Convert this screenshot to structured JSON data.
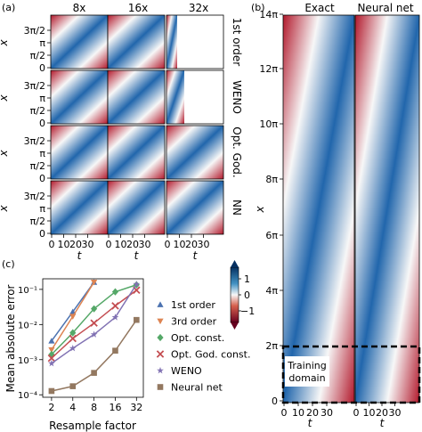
{
  "colors": {
    "red": "#b2182b",
    "white": "#f7f7f7",
    "blue": "#2166ac",
    "series_1st": "#4c72b0",
    "series_3rd": "#dd8452",
    "series_opt": "#55a868",
    "series_optgod": "#c44e52",
    "series_weno": "#8172b3",
    "series_nn": "#937860"
  },
  "panel_a": {
    "label": "(a)",
    "col_titles": [
      "8x",
      "16x",
      "32x"
    ],
    "row_titles": [
      "1st order",
      "WENO",
      "Opt. God.",
      "NN"
    ],
    "ylabel": "x",
    "y_ticks": [
      "3π/2",
      "π",
      "π/2",
      "0"
    ],
    "xlabel": "t",
    "x_ticks": [
      "0",
      "10",
      "20",
      "30"
    ]
  },
  "panel_b": {
    "label": "(b)",
    "col_titles": [
      "Exact",
      "Neural net"
    ],
    "ylabel": "x",
    "y_ticks": [
      "14π",
      "12π",
      "10π",
      "8π",
      "6π",
      "4π",
      "2π",
      "0"
    ],
    "xlabel": "t",
    "x_ticks": [
      "0",
      "10",
      "20",
      "30"
    ],
    "box_label_line1": "Training",
    "box_label_line2": "domain"
  },
  "colorbar": {
    "ticks": [
      "1",
      "0",
      "−1"
    ]
  },
  "chart_data": [
    {
      "type": "line",
      "panel": "(c)",
      "xlabel": "Resample factor",
      "ylabel": "Mean absolute error",
      "x_scale": "log2",
      "y_scale": "log",
      "x": [
        2,
        4,
        8,
        16,
        32
      ],
      "x_tick_labels": [
        "2",
        "4",
        "8",
        "16",
        "32"
      ],
      "y_tick_labels": [
        "10⁻⁴",
        "10⁻³",
        "10⁻²",
        "10⁻¹"
      ],
      "ylim": [
        0.0001,
        0.2
      ],
      "legend_position": "right",
      "series": [
        {
          "name": "1st order",
          "marker": "triangle-up",
          "color": "#4c72b0",
          "values": [
            0.0034,
            0.023,
            0.16,
            null,
            null
          ]
        },
        {
          "name": "3rd order",
          "marker": "triangle-down",
          "color": "#dd8452",
          "values": [
            0.0019,
            0.017,
            0.16,
            null,
            null
          ]
        },
        {
          "name": "Opt. const.",
          "marker": "diamond",
          "color": "#55a868",
          "values": [
            0.0014,
            0.0058,
            0.028,
            0.085,
            0.135
          ]
        },
        {
          "name": "Opt. God. const.",
          "marker": "x",
          "color": "#c44e52",
          "values": [
            0.0011,
            0.004,
            0.011,
            0.034,
            0.095
          ]
        },
        {
          "name": "WENO",
          "marker": "star",
          "color": "#8172b3",
          "values": [
            0.00078,
            0.0021,
            0.0052,
            0.016,
            0.14
          ]
        },
        {
          "name": "Neural net",
          "marker": "square",
          "color": "#937860",
          "values": [
            0.000128,
            0.000175,
            0.00042,
            0.0018,
            0.0135
          ]
        }
      ]
    }
  ]
}
